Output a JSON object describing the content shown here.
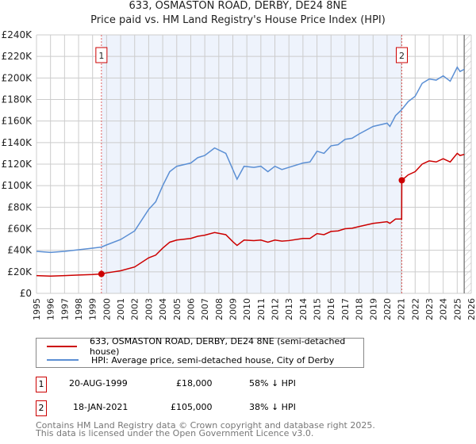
{
  "title": "633, OSMASTON ROAD, DERBY, DE24 8NE",
  "subtitle": "Price paid vs. HM Land Registry's House Price Index (HPI)",
  "legend": [
    {
      "label": "633, OSMASTON ROAD, DERBY, DE24 8NE (semi-detached house)",
      "color": "#cc0000"
    },
    {
      "label": "HPI: Average price, semi-detached house, City of Derby",
      "color": "#5b8fd4"
    }
  ],
  "sales": [
    {
      "num": "1",
      "date": "20-AUG-1999",
      "price": "£18,000",
      "hpi": "58% ↓ HPI"
    },
    {
      "num": "2",
      "date": "18-JAN-2021",
      "price": "£105,000",
      "hpi": "38% ↓ HPI"
    }
  ],
  "footer": [
    "Contains HM Land Registry data © Crown copyright and database right 2025.",
    "This data is licensed under the Open Government Licence v3.0."
  ],
  "chart_data": {
    "type": "line",
    "title": "633, OSMASTON ROAD, DERBY, DE24 8NE",
    "subtitle": "Price paid vs. HM Land Registry's House Price Index (HPI)",
    "xlim": [
      1995,
      2026
    ],
    "ylim": [
      0,
      240000
    ],
    "xticks": [
      "1995",
      "1996",
      "1997",
      "1998",
      "1999",
      "2000",
      "2001",
      "2002",
      "2003",
      "2004",
      "2005",
      "2006",
      "2007",
      "2008",
      "2009",
      "2010",
      "2011",
      "2012",
      "2013",
      "2014",
      "2015",
      "2016",
      "2017",
      "2018",
      "2019",
      "2020",
      "2021",
      "2022",
      "2023",
      "2024",
      "2025",
      "2026"
    ],
    "yticks": [
      {
        "v": 0,
        "l": "£0"
      },
      {
        "v": 20000,
        "l": "£20K"
      },
      {
        "v": 40000,
        "l": "£40K"
      },
      {
        "v": 60000,
        "l": "£60K"
      },
      {
        "v": 80000,
        "l": "£80K"
      },
      {
        "v": 100000,
        "l": "£100K"
      },
      {
        "v": 120000,
        "l": "£120K"
      },
      {
        "v": 140000,
        "l": "£140K"
      },
      {
        "v": 160000,
        "l": "£160K"
      },
      {
        "v": 180000,
        "l": "£180K"
      },
      {
        "v": 200000,
        "l": "£200K"
      },
      {
        "v": 220000,
        "l": "£220K"
      },
      {
        "v": 240000,
        "l": "£240K"
      }
    ],
    "shaded_range": [
      1999.63,
      2021.05
    ],
    "hatched_from": 2025.5,
    "markers": [
      {
        "label": "1",
        "x": 1999.63,
        "y": 18000
      },
      {
        "label": "2",
        "x": 2021.05,
        "y": 105000
      }
    ],
    "series": [
      {
        "name": "HPI",
        "color": "#5b8fd4",
        "x": [
          1995,
          1996,
          1997,
          1998,
          1999,
          1999.63,
          2000,
          2001,
          2002,
          2003,
          2003.5,
          2004,
          2004.5,
          2005,
          2006,
          2006.5,
          2007,
          2007.7,
          2008.5,
          2009,
          2009.3,
          2009.8,
          2010.5,
          2011,
          2011.5,
          2012,
          2012.5,
          2013,
          2014,
          2014.5,
          2015,
          2015.5,
          2016,
          2016.5,
          2017,
          2017.5,
          2018,
          2019,
          2020,
          2020.2,
          2020.6,
          2021,
          2021.5,
          2022,
          2022.5,
          2023,
          2023.5,
          2024,
          2024.5,
          2025,
          2025.2,
          2025.5
        ],
        "y": [
          39000,
          38000,
          39000,
          40500,
          42000,
          43000,
          45000,
          50000,
          58000,
          78000,
          85000,
          100000,
          113000,
          118000,
          121000,
          126000,
          128000,
          135000,
          130000,
          115000,
          106000,
          118000,
          117000,
          118000,
          113000,
          118000,
          115000,
          117000,
          121000,
          122000,
          132000,
          130000,
          137000,
          138000,
          143000,
          144000,
          148000,
          155000,
          158000,
          155000,
          165000,
          170000,
          178000,
          183000,
          195000,
          199000,
          198000,
          202000,
          197000,
          210000,
          206000,
          208000
        ]
      },
      {
        "name": "Price paid",
        "color": "#cc0000",
        "x": [
          1995,
          1996,
          1997,
          1998,
          1999,
          1999.63,
          2000,
          2001,
          2002,
          2003,
          2003.5,
          2004,
          2004.5,
          2005,
          2006,
          2006.5,
          2007,
          2007.7,
          2008.5,
          2009,
          2009.3,
          2009.8,
          2010.5,
          2011,
          2011.5,
          2012,
          2012.5,
          2013,
          2014,
          2014.5,
          2015,
          2015.5,
          2016,
          2016.5,
          2017,
          2017.5,
          2018,
          2019,
          2020,
          2020.2,
          2020.6,
          2021.04,
          2021.05,
          2021.5,
          2022,
          2022.5,
          2023,
          2023.5,
          2024,
          2024.5,
          2025,
          2025.2,
          2025.5
        ],
        "y": [
          16500,
          16000,
          16500,
          17000,
          17500,
          18000,
          19000,
          21000,
          24500,
          33000,
          35500,
          42000,
          47500,
          49500,
          51000,
          53000,
          54000,
          56500,
          54500,
          48000,
          44500,
          49500,
          49000,
          49500,
          47500,
          49500,
          48500,
          49000,
          51000,
          51000,
          55500,
          54500,
          57500,
          58000,
          60000,
          60500,
          62000,
          65000,
          66500,
          65000,
          69000,
          69000,
          105000,
          110000,
          113000,
          120000,
          123000,
          122000,
          125000,
          122000,
          130000,
          128000,
          129000
        ]
      }
    ]
  }
}
